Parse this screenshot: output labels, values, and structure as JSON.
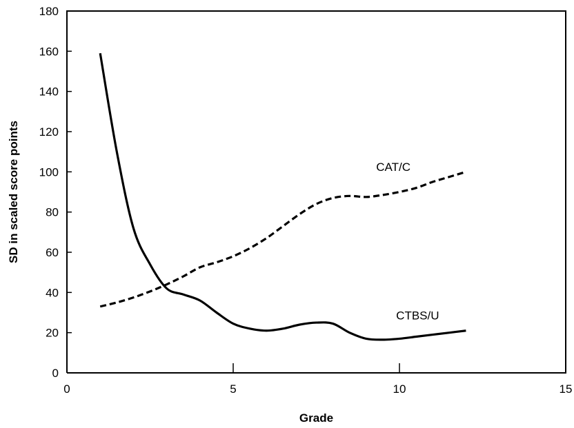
{
  "chart_data": {
    "type": "line",
    "xlabel": "Grade",
    "ylabel": "SD in scaled score points",
    "xlim": [
      0,
      15
    ],
    "ylim": [
      0,
      180
    ],
    "xticks": [
      0,
      5,
      10,
      15
    ],
    "yticks": [
      0,
      20,
      40,
      60,
      80,
      100,
      120,
      140,
      160,
      180
    ],
    "grid": false,
    "legend": "none",
    "series": [
      {
        "name": "CTBS/U",
        "style": "solid",
        "x": [
          1,
          1.5,
          2,
          2.5,
          3,
          3.5,
          4,
          4.5,
          5,
          5.5,
          6,
          6.5,
          7,
          7.5,
          8,
          8.5,
          9,
          9.5,
          10,
          10.5,
          11,
          11.5,
          12
        ],
        "y": [
          159,
          110,
          72,
          54,
          42,
          39,
          36,
          30,
          24.5,
          22,
          21,
          22,
          24,
          25,
          24.5,
          20,
          17,
          16.5,
          17,
          18,
          19,
          20,
          21
        ]
      },
      {
        "name": "CAT/C",
        "style": "dashed",
        "x": [
          1,
          1.5,
          2,
          2.5,
          3,
          3.5,
          4,
          4.5,
          5,
          5.5,
          6,
          6.5,
          7,
          7.5,
          8,
          8.5,
          9,
          9.5,
          10,
          10.5,
          11,
          11.5,
          12
        ],
        "y": [
          33,
          35,
          37.5,
          40.5,
          44,
          48,
          52.5,
          55,
          58,
          62,
          67,
          73,
          79,
          84,
          87,
          88,
          87.5,
          88.5,
          90,
          92,
          95,
          97.5,
          100
        ]
      }
    ]
  }
}
